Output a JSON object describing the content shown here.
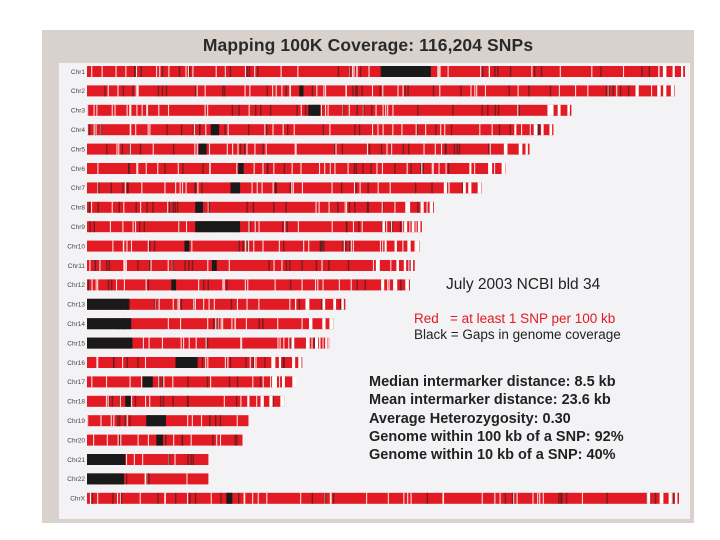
{
  "title": "Mapping 100K Coverage: 116,204 SNPs",
  "build_note": "July 2003 NCBI bld 34",
  "legend": {
    "red": "Red   = at least 1 SNP per 100 kb",
    "black": "Black = Gaps in genome coverage"
  },
  "stats": [
    "Median intermarker distance:  8.5 kb",
    "Mean intermarker distance:  23.6 kb",
    "Average Heterozygosity:  0.30",
    "Genome within 100 kb of a SNP: 92%",
    "Genome within 10 kb of a SNP: 40%"
  ],
  "colors": {
    "red": "#e21a23",
    "black": "#1a1a1a",
    "dark_tick": "#4a2020",
    "light_tick": "#ffffff"
  },
  "chart_data": {
    "type": "chromosome coverage map",
    "title": "Mapping 100K Coverage: 116,204 SNPs",
    "length_unit": "relative (longest chromosome = 1.000)",
    "chromosomes": [
      {
        "label": "Chr1",
        "length": 1.0,
        "gaps": [
          [
            0.492,
            0.575
          ]
        ]
      },
      {
        "label": "Chr2",
        "length": 0.983,
        "gaps": [
          [
            0.355,
            0.362
          ]
        ]
      },
      {
        "label": "Chr3",
        "length": 0.81,
        "gaps": [
          [
            0.37,
            0.39
          ]
        ]
      },
      {
        "label": "Chr4",
        "length": 0.78,
        "gaps": [
          [
            0.207,
            0.221
          ]
        ]
      },
      {
        "label": "Chr5",
        "length": 0.74,
        "gaps": [
          [
            0.187,
            0.2
          ]
        ]
      },
      {
        "label": "Chr6",
        "length": 0.7,
        "gaps": [
          [
            0.253,
            0.262
          ]
        ]
      },
      {
        "label": "Chr7",
        "length": 0.66,
        "gaps": [
          [
            0.24,
            0.256
          ]
        ]
      },
      {
        "label": "Chr8",
        "length": 0.58,
        "gaps": [
          [
            0.181,
            0.194
          ]
        ]
      },
      {
        "label": "Chr9",
        "length": 0.56,
        "gaps": [
          [
            0.181,
            0.256
          ]
        ]
      },
      {
        "label": "Chr10",
        "length": 0.556,
        "gaps": [
          [
            0.163,
            0.171
          ]
        ]
      },
      {
        "label": "Chr11",
        "length": 0.548,
        "gaps": [
          [
            0.209,
            0.217
          ]
        ]
      },
      {
        "label": "Chr12",
        "length": 0.54,
        "gaps": [
          [
            0.141,
            0.149
          ]
        ]
      },
      {
        "label": "Chr13",
        "length": 0.432,
        "gaps": [
          [
            0.0,
            0.07
          ]
        ]
      },
      {
        "label": "Chr14",
        "length": 0.412,
        "gaps": [
          [
            0.0,
            0.074
          ]
        ]
      },
      {
        "label": "Chr15",
        "length": 0.405,
        "gaps": [
          [
            0.0,
            0.076
          ]
        ]
      },
      {
        "label": "Chr16",
        "length": 0.36,
        "gaps": [
          [
            0.148,
            0.185
          ]
        ]
      },
      {
        "label": "Chr17",
        "length": 0.35,
        "gaps": [
          [
            0.093,
            0.11
          ]
        ]
      },
      {
        "label": "Chr18",
        "length": 0.33,
        "gaps": [
          [
            0.064,
            0.073
          ]
        ]
      },
      {
        "label": "Chr19",
        "length": 0.27,
        "gaps": [
          [
            0.099,
            0.132
          ]
        ]
      },
      {
        "label": "Chr20",
        "length": 0.26,
        "gaps": [
          [
            0.116,
            0.127
          ]
        ]
      },
      {
        "label": "Chr21",
        "length": 0.203,
        "gaps": [
          [
            0.0,
            0.064
          ]
        ]
      },
      {
        "label": "Chr22",
        "length": 0.203,
        "gaps": [
          [
            0.0,
            0.062
          ]
        ]
      },
      {
        "label": "ChrX",
        "length": 0.99,
        "gaps": [
          [
            0.233,
            0.243
          ]
        ]
      }
    ]
  }
}
